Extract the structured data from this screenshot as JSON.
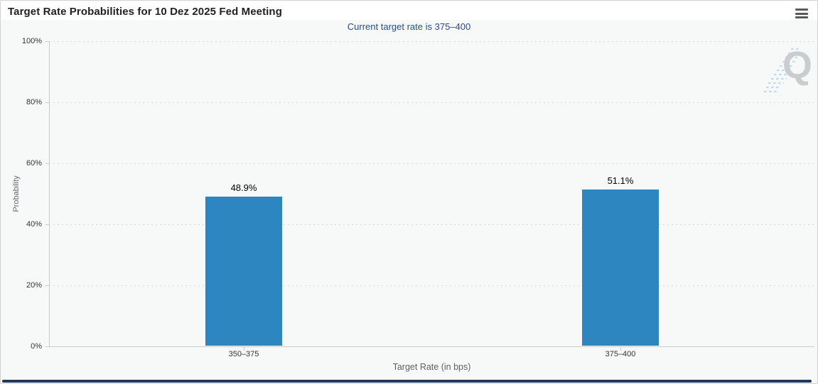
{
  "header": {
    "title": "Target Rate Probabilities for 10 Dez 2025 Fed Meeting",
    "menu_icon": "hamburger-icon"
  },
  "chart_data": {
    "type": "bar",
    "title": "Target Rate Probabilities for 10 Dez 2025 Fed Meeting",
    "subtitle": "Current target rate is 375–400",
    "categories": [
      "350–375",
      "375–400"
    ],
    "values": [
      48.9,
      51.1
    ],
    "value_labels": [
      "48.9%",
      "51.1%"
    ],
    "xlabel": "Target Rate (in bps)",
    "ylabel": "Probability",
    "ylim": [
      0,
      100
    ],
    "yticks": [
      "100%",
      "80%",
      "60%",
      "40%",
      "20%",
      "0%"
    ],
    "grid": "dotted horizontal gridlines at 20% intervals",
    "legend": "none",
    "bar_color": "#2e86c1"
  },
  "watermark": {
    "letter": "Q"
  },
  "colors": {
    "bar": "#2e86c1",
    "subtitle_text": "#2b4a8c",
    "background": "#f7f8f8",
    "scrollbar": "#1f3a5c",
    "grid": "#d9dadb"
  }
}
